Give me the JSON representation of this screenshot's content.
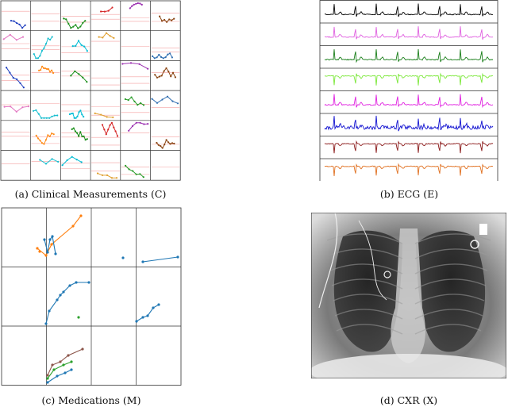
{
  "captions": {
    "a": "(a) Clinical Measurements (C)",
    "b": "(b) ECG (E)",
    "c": "(c) Medications (M)",
    "d": "(d) CXR (X)"
  },
  "colors": {
    "ecg_traces": [
      "#000000",
      "#e061e0",
      "#1a7f1a",
      "#7ce83a",
      "#e020e0",
      "#1010d0",
      "#8b1a1a",
      "#e07020"
    ],
    "lab_palette": [
      "#1f3fbf",
      "#ff8c1a",
      "#1a8f1a",
      "#d62728",
      "#9b30b0",
      "#8b4513",
      "#e377c2",
      "#17becf",
      "#00bcd4",
      "#e0a030",
      "#2a9d2a",
      "#2f6db0"
    ],
    "med_series": [
      "#1f77b4",
      "#ff7f0e",
      "#2ca02c",
      "#8c564b",
      "#d62728"
    ]
  }
}
